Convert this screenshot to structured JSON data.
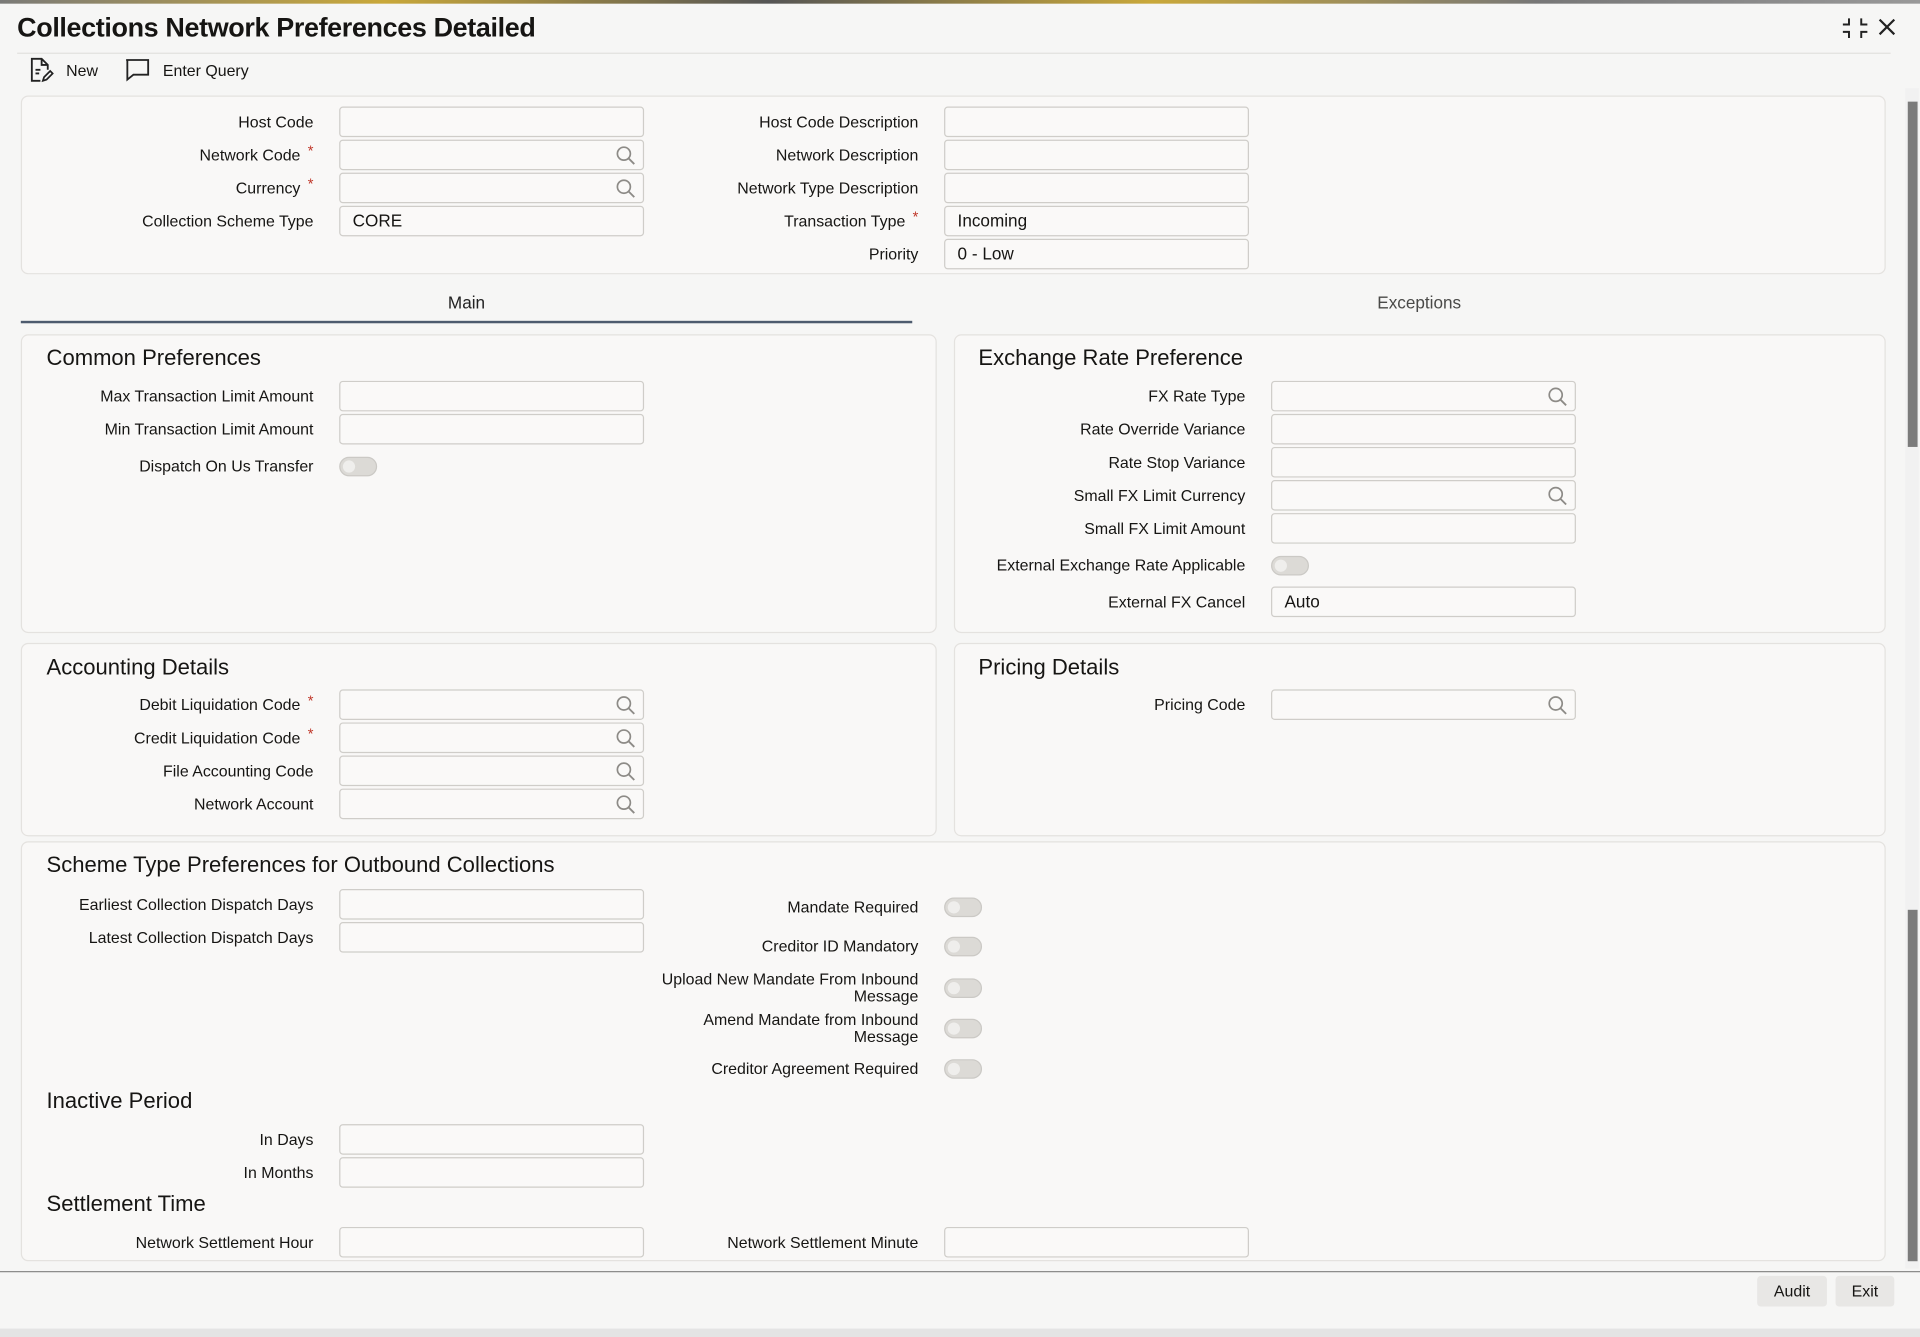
{
  "window": {
    "title": "Collections Network Preferences Detailed"
  },
  "toolbar": {
    "new_label": "New",
    "enter_query_label": "Enter Query"
  },
  "header": {
    "host_code": {
      "label": "Host Code",
      "value": ""
    },
    "network_code": {
      "label": "Network Code",
      "value": ""
    },
    "currency": {
      "label": "Currency",
      "value": ""
    },
    "collection_scheme_type": {
      "label": "Collection Scheme Type",
      "value": "CORE"
    },
    "host_code_description": {
      "label": "Host Code Description",
      "value": ""
    },
    "network_description": {
      "label": "Network Description",
      "value": ""
    },
    "network_type_description": {
      "label": "Network Type Description",
      "value": ""
    },
    "transaction_type": {
      "label": "Transaction Type",
      "value": "Incoming"
    },
    "priority": {
      "label": "Priority",
      "value": "0 - Low"
    },
    "required_mark": "*"
  },
  "tabs": [
    {
      "label": "Main",
      "active": true
    },
    {
      "label": "Exceptions",
      "active": false
    }
  ],
  "common": {
    "title": "Common Preferences",
    "max_limit": "Max Transaction Limit Amount",
    "min_limit": "Min Transaction Limit Amount",
    "dispatch_on_us": "Dispatch On Us Transfer"
  },
  "exchange": {
    "title": "Exchange Rate Preference",
    "fx_rate_type": "FX Rate Type",
    "rate_override_variance": "Rate Override Variance",
    "rate_stop_variance": "Rate Stop Variance",
    "small_fx_limit_currency": "Small FX Limit Currency",
    "small_fx_limit_amount": "Small FX Limit Amount",
    "external_rate_applicable": "External Exchange Rate Applicable",
    "external_fx_cancel": {
      "label": "External FX Cancel",
      "value": "Auto"
    }
  },
  "accounting": {
    "title": "Accounting Details",
    "debit_liquidation_code": "Debit Liquidation Code",
    "credit_liquidation_code": "Credit Liquidation Code",
    "file_accounting_code": "File Accounting Code",
    "network_account": "Network Account"
  },
  "pricing": {
    "title": "Pricing Details",
    "pricing_code": "Pricing Code"
  },
  "scheme": {
    "title": "Scheme Type Preferences for Outbound Collections",
    "earliest": "Earliest Collection Dispatch Days",
    "latest": "Latest Collection Dispatch Days",
    "mandate_required": "Mandate Required",
    "creditor_id_mandatory": "Creditor ID Mandatory",
    "upload_new_mandate": "Upload New Mandate From Inbound Message",
    "amend_mandate": "Amend Mandate from Inbound Message",
    "creditor_agreement_required": "Creditor Agreement Required"
  },
  "inactive": {
    "title": "Inactive Period",
    "in_days": "In Days",
    "in_months": "In Months"
  },
  "settlement": {
    "title": "Settlement Time",
    "hour": "Network Settlement Hour",
    "minute": "Network Settlement Minute"
  },
  "footer": {
    "audit_label": "Audit",
    "exit_label": "Exit"
  },
  "icons": {
    "new": "new-document-icon",
    "enter_query": "chat-bubble-icon",
    "minimize": "collapse-icon",
    "close": "close-icon",
    "search": "search-icon"
  }
}
